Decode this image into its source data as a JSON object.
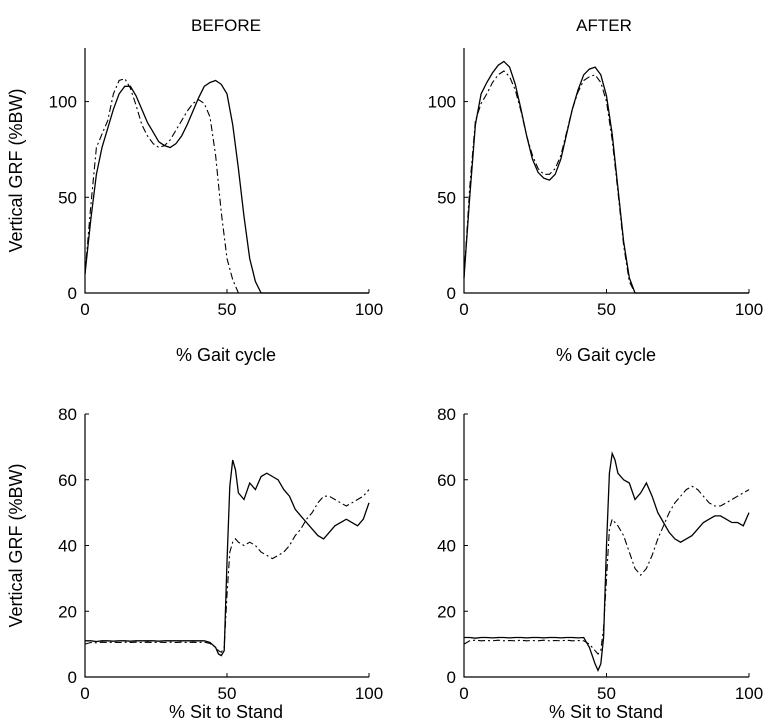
{
  "columns": [
    "BEFORE",
    "AFTER"
  ],
  "chart_data": [
    {
      "type": "line",
      "title": "BEFORE",
      "xlabel": "% Gait cycle",
      "ylabel": "Vertical GRF (%BW)",
      "xlim": [
        0,
        100
      ],
      "ylim": [
        0,
        128
      ],
      "xticks": [
        0,
        50,
        100
      ],
      "yticks": [
        0,
        50,
        100
      ],
      "series": [
        {
          "style": "solid",
          "x": [
            0,
            2,
            4,
            6,
            8,
            10,
            12,
            14,
            16,
            18,
            20,
            22,
            24,
            26,
            28,
            30,
            32,
            34,
            36,
            38,
            40,
            42,
            44,
            46,
            48,
            50,
            52,
            54,
            56,
            58,
            60,
            62,
            64,
            70,
            80,
            100
          ],
          "y": [
            10,
            38,
            62,
            76,
            86,
            96,
            104,
            108,
            108,
            103,
            96,
            89,
            84,
            79,
            77,
            76,
            78,
            82,
            88,
            95,
            102,
            108,
            110,
            111,
            109,
            104,
            88,
            65,
            40,
            18,
            6,
            0,
            0,
            0,
            0,
            0
          ]
        },
        {
          "style": "dashdot",
          "x": [
            0,
            2,
            4,
            6,
            8,
            10,
            12,
            14,
            16,
            18,
            20,
            22,
            24,
            26,
            28,
            30,
            32,
            34,
            36,
            38,
            40,
            42,
            44,
            46,
            48,
            50,
            52,
            54,
            56,
            58,
            60,
            62,
            70,
            100
          ],
          "y": [
            10,
            45,
            76,
            83,
            90,
            104,
            111,
            112,
            107,
            98,
            88,
            82,
            78,
            76,
            77,
            80,
            85,
            90,
            95,
            99,
            101,
            99,
            92,
            72,
            42,
            18,
            7,
            0,
            0,
            0,
            0,
            0,
            0,
            0
          ]
        }
      ]
    },
    {
      "type": "line",
      "title": "AFTER",
      "xlabel": "% Gait cycle",
      "ylabel": "",
      "xlim": [
        0,
        100
      ],
      "ylim": [
        0,
        128
      ],
      "xticks": [
        0,
        50,
        100
      ],
      "yticks": [
        0,
        50,
        100
      ],
      "series": [
        {
          "style": "solid",
          "x": [
            0,
            2,
            4,
            6,
            8,
            10,
            12,
            14,
            16,
            18,
            20,
            22,
            24,
            26,
            28,
            30,
            32,
            34,
            36,
            38,
            40,
            42,
            44,
            46,
            48,
            50,
            52,
            54,
            56,
            58,
            60,
            62,
            70,
            100
          ],
          "y": [
            8,
            50,
            88,
            104,
            110,
            115,
            119,
            121,
            118,
            109,
            96,
            82,
            70,
            63,
            60,
            59,
            62,
            70,
            83,
            96,
            106,
            114,
            117,
            118,
            114,
            103,
            83,
            55,
            27,
            8,
            0,
            0,
            0,
            0
          ]
        },
        {
          "style": "dashdot",
          "x": [
            0,
            2,
            4,
            6,
            8,
            10,
            12,
            14,
            16,
            18,
            20,
            22,
            24,
            26,
            28,
            30,
            32,
            34,
            36,
            38,
            40,
            42,
            44,
            46,
            48,
            50,
            52,
            54,
            56,
            58,
            60,
            62,
            70,
            100
          ],
          "y": [
            8,
            55,
            90,
            99,
            104,
            110,
            114,
            116,
            113,
            106,
            95,
            82,
            72,
            65,
            62,
            62,
            65,
            72,
            84,
            96,
            105,
            111,
            113,
            114,
            110,
            100,
            80,
            53,
            25,
            6,
            0,
            0,
            0,
            0
          ]
        }
      ]
    },
    {
      "type": "line",
      "title": "",
      "xlabel": "% Sit to Stand",
      "ylabel": "Vertical GRF (%BW)",
      "xlim": [
        0,
        100
      ],
      "ylim": [
        0,
        80
      ],
      "xticks": [
        0,
        50,
        100
      ],
      "yticks": [
        0,
        20,
        40,
        60,
        80
      ],
      "series": [
        {
          "style": "solid",
          "x": [
            0,
            2,
            4,
            6,
            8,
            10,
            12,
            14,
            16,
            18,
            20,
            22,
            24,
            26,
            28,
            30,
            32,
            34,
            36,
            38,
            40,
            42,
            44,
            46,
            47,
            48,
            49,
            50,
            51,
            52,
            53,
            54,
            56,
            58,
            60,
            62,
            64,
            66,
            68,
            70,
            72,
            74,
            76,
            78,
            80,
            82,
            84,
            86,
            88,
            90,
            92,
            94,
            96,
            98,
            100
          ],
          "y": [
            11,
            11,
            10.8,
            11,
            11,
            10.9,
            11,
            11,
            10.9,
            11,
            11,
            11,
            11,
            10.9,
            11,
            11,
            11,
            11,
            11,
            11,
            11,
            11,
            10.5,
            9,
            7,
            6.5,
            8,
            35,
            58,
            66,
            63,
            56,
            54,
            59,
            57,
            61,
            62,
            61,
            60,
            57,
            55,
            51,
            49,
            47,
            45,
            43,
            42,
            44,
            46,
            47,
            48,
            47,
            46,
            48,
            53
          ]
        },
        {
          "style": "dashdot",
          "x": [
            0,
            2,
            4,
            6,
            8,
            10,
            12,
            14,
            16,
            18,
            20,
            22,
            24,
            26,
            28,
            30,
            32,
            34,
            36,
            38,
            40,
            42,
            44,
            46,
            47,
            48,
            49,
            50,
            51,
            52,
            53,
            54,
            56,
            58,
            60,
            62,
            64,
            66,
            68,
            70,
            72,
            74,
            76,
            78,
            80,
            82,
            84,
            86,
            88,
            90,
            92,
            94,
            96,
            98,
            100
          ],
          "y": [
            10,
            10.5,
            10.4,
            10.6,
            10.5,
            10.6,
            10.5,
            10.6,
            10.5,
            10.6,
            10.5,
            10.6,
            10.5,
            10.6,
            10.5,
            10.6,
            10.5,
            10.6,
            10.5,
            10.6,
            10.5,
            10.6,
            10.2,
            9,
            8,
            7.5,
            9,
            25,
            38,
            41,
            42,
            41,
            40,
            41,
            40,
            38,
            37,
            36,
            37,
            38,
            40,
            43,
            45,
            48,
            50,
            53,
            55,
            55,
            54,
            53,
            52,
            53,
            54,
            55,
            57
          ]
        }
      ]
    },
    {
      "type": "line",
      "title": "",
      "xlabel": "% Sit to Stand",
      "ylabel": "",
      "xlim": [
        0,
        100
      ],
      "ylim": [
        0,
        80
      ],
      "xticks": [
        0,
        50,
        100
      ],
      "yticks": [
        0,
        20,
        40,
        60,
        80
      ],
      "series": [
        {
          "style": "solid",
          "x": [
            0,
            2,
            4,
            6,
            8,
            10,
            12,
            14,
            16,
            18,
            20,
            22,
            24,
            26,
            28,
            30,
            32,
            34,
            36,
            38,
            40,
            42,
            44,
            46,
            47,
            48,
            49,
            50,
            51,
            52,
            53,
            54,
            56,
            58,
            60,
            62,
            64,
            66,
            68,
            70,
            72,
            74,
            76,
            78,
            80,
            82,
            84,
            86,
            88,
            90,
            92,
            94,
            96,
            98,
            100
          ],
          "y": [
            12,
            12,
            11.8,
            12,
            12,
            11.9,
            12,
            12,
            11.9,
            12,
            12,
            11.9,
            12,
            12,
            11.9,
            12,
            12,
            11.9,
            12,
            12,
            11.9,
            12,
            9,
            4,
            2,
            4,
            12,
            40,
            62,
            68,
            66,
            62,
            60,
            59,
            54,
            56,
            59,
            55,
            50,
            47,
            44,
            42,
            41,
            42,
            43,
            45,
            47,
            48,
            49,
            49,
            48,
            47,
            47,
            46,
            50
          ]
        },
        {
          "style": "dashdot",
          "x": [
            0,
            2,
            4,
            6,
            8,
            10,
            12,
            14,
            16,
            18,
            20,
            22,
            24,
            26,
            28,
            30,
            32,
            34,
            36,
            38,
            40,
            42,
            44,
            46,
            47,
            48,
            49,
            50,
            51,
            52,
            53,
            54,
            56,
            58,
            60,
            62,
            64,
            66,
            68,
            70,
            72,
            74,
            76,
            78,
            80,
            82,
            84,
            86,
            88,
            90,
            92,
            94,
            96,
            98,
            100
          ],
          "y": [
            10,
            11,
            11.2,
            11,
            11.1,
            11,
            11.2,
            11,
            11.1,
            11,
            11.2,
            11,
            11.1,
            11,
            11.2,
            11,
            11.1,
            11,
            11.2,
            11,
            11.1,
            11,
            10,
            8,
            7,
            8,
            15,
            30,
            45,
            48,
            47,
            46,
            43,
            38,
            33,
            31,
            33,
            37,
            42,
            46,
            50,
            53,
            55,
            57,
            58,
            57,
            55,
            53,
            52,
            52,
            53,
            54,
            55,
            56,
            57
          ]
        }
      ]
    }
  ]
}
